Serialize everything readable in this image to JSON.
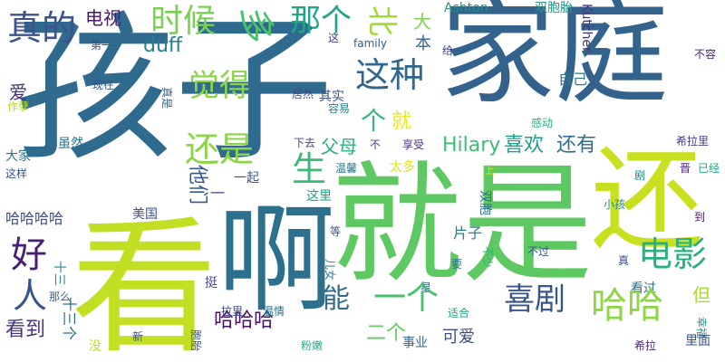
{
  "words": [
    {
      "text": "孩子",
      "color": "#2f6b8e"
    },
    {
      "text": "家庭",
      "color": "#33638d"
    },
    {
      "text": "就是",
      "color": "#5ec962"
    },
    {
      "text": "还",
      "color": "#c8e020"
    },
    {
      "text": "看",
      "color": "#c2df23"
    },
    {
      "text": "啊",
      "color": "#2d708e"
    },
    {
      "text": "真的",
      "color": "#3b528b"
    },
    {
      "text": "时候",
      "color": "#7ad151"
    },
    {
      "text": "多",
      "color": "#4ac16d"
    },
    {
      "text": "那个",
      "color": "#20a486"
    },
    {
      "text": "北",
      "color": "#a2da37"
    },
    {
      "text": "大",
      "color": "#7fd34e"
    },
    {
      "text": "本",
      "color": "#31688e"
    },
    {
      "text": "电视",
      "color": "#481a6c"
    },
    {
      "text": "Ashton",
      "color": "#21918c"
    },
    {
      "text": "双胞胎",
      "color": "#1f988b"
    },
    {
      "text": "Kutcher",
      "color": "#46327e"
    },
    {
      "text": "给",
      "color": "#3e4989"
    },
    {
      "text": "不容",
      "color": "#482576"
    },
    {
      "text": "第一",
      "color": "#3e4a89"
    },
    {
      "text": "duff",
      "color": "#27808e"
    },
    {
      "text": "这",
      "color": "#433e85"
    },
    {
      "text": "family",
      "color": "#34608d"
    },
    {
      "text": "觉得",
      "color": "#8bd646"
    },
    {
      "text": "这种",
      "color": "#31678e"
    },
    {
      "text": "自己",
      "color": "#2a788e"
    },
    {
      "text": "爱",
      "color": "#46327e"
    },
    {
      "text": "现在",
      "color": "#39568c"
    },
    {
      "text": "真是",
      "color": "#33638d"
    },
    {
      "text": "居然",
      "color": "#3d4e8a"
    },
    {
      "text": "其实",
      "color": "#3b528b"
    },
    {
      "text": "作孽",
      "color": "#b5de2b"
    },
    {
      "text": "容易",
      "color": "#25848e"
    },
    {
      "text": "个",
      "color": "#35b779"
    },
    {
      "text": "就",
      "color": "#f0e51c"
    },
    {
      "text": "感动",
      "color": "#29af7f"
    },
    {
      "text": "还是",
      "color": "#8bd646"
    },
    {
      "text": "父母",
      "color": "#2ab07f"
    },
    {
      "text": "Hilary",
      "color": "#3dbc74"
    },
    {
      "text": "喜欢",
      "color": "#1f9e89"
    },
    {
      "text": "还有",
      "color": "#2e6e8e"
    },
    {
      "text": "希拉里",
      "color": "#424086"
    },
    {
      "text": "虽然",
      "color": "#2e6e8e"
    },
    {
      "text": "下去",
      "color": "#3e4989"
    },
    {
      "text": "不",
      "color": "#3f4788"
    },
    {
      "text": "享受",
      "color": "#472c7a"
    },
    {
      "text": "大家",
      "color": "#2a768e"
    },
    {
      "text": "温馨",
      "color": "#2e6f8e"
    },
    {
      "text": "太多",
      "color": "#e2e418"
    },
    {
      "text": "剧",
      "color": "#238a8d"
    },
    {
      "text": "晋",
      "color": "#481f70"
    },
    {
      "text": "已经",
      "color": "#21a585"
    },
    {
      "text": "生",
      "color": "#3aba76"
    },
    {
      "text": "这样",
      "color": "#3b528b"
    },
    {
      "text": "他们",
      "color": "#37598c"
    },
    {
      "text": "一起",
      "color": "#3b528b"
    },
    {
      "text": "这里",
      "color": "#1fa287"
    },
    {
      "text": "上",
      "color": "#d2e21b"
    },
    {
      "text": "小孩",
      "color": "#238a8d"
    },
    {
      "text": "哈哈哈哈",
      "color": "#3e4c8a"
    },
    {
      "text": "美国",
      "color": "#3c508b"
    },
    {
      "text": "一",
      "color": "#3e4a89"
    },
    {
      "text": "双胞",
      "color": "#2d708e"
    },
    {
      "text": "到",
      "color": "#48186a"
    },
    {
      "text": "片子",
      "color": "#26828e"
    },
    {
      "text": "电影",
      "color": "#2ab07f"
    },
    {
      "text": "好",
      "color": "#482173"
    },
    {
      "text": "等",
      "color": "#38588c"
    },
    {
      "text": "不少",
      "color": "#2db27d"
    },
    {
      "text": "不过",
      "color": "#3b528b"
    },
    {
      "text": "要",
      "color": "#2c728e"
    },
    {
      "text": "真",
      "color": "#3d4d8a"
    },
    {
      "text": "十三",
      "color": "#23898e"
    },
    {
      "text": "儿女",
      "color": "#26828e"
    },
    {
      "text": "挺",
      "color": "#3f4889"
    },
    {
      "text": "人",
      "color": "#3a548c"
    },
    {
      "text": "但",
      "color": "#a5db36"
    },
    {
      "text": "那么",
      "color": "#34618d"
    },
    {
      "text": "星",
      "color": "#3b528b"
    },
    {
      "text": "看过",
      "color": "#2d708e"
    },
    {
      "text": "能",
      "color": "#2f6c8e"
    },
    {
      "text": "一个",
      "color": "#48c16e"
    },
    {
      "text": "喜剧",
      "color": "#39568c"
    },
    {
      "text": "哈哈",
      "color": "#8ed645"
    },
    {
      "text": "十三个",
      "color": "#2d718e"
    },
    {
      "text": "哈哈哈",
      "color": "#471164"
    },
    {
      "text": "拉里",
      "color": "#3f4889"
    },
    {
      "text": "温情",
      "color": "#2e6e8e"
    },
    {
      "text": "适合",
      "color": "#22a884"
    },
    {
      "text": "幸福",
      "color": "#20928c"
    },
    {
      "text": "看到",
      "color": "#46327e"
    },
    {
      "text": "二个",
      "color": "#63cb5f"
    },
    {
      "text": "可爱",
      "color": "#3e4c8a"
    },
    {
      "text": "希拉",
      "color": "#482878"
    },
    {
      "text": "里面",
      "color": "#3b528b"
    },
    {
      "text": "新",
      "color": "#3d4e8a"
    },
    {
      "text": "没",
      "color": "#c0df25"
    },
    {
      "text": "胞胎",
      "color": "#38598c"
    },
    {
      "text": "粉嫩",
      "color": "#25ac82"
    },
    {
      "text": "事业",
      "color": "#31688e"
    }
  ]
}
